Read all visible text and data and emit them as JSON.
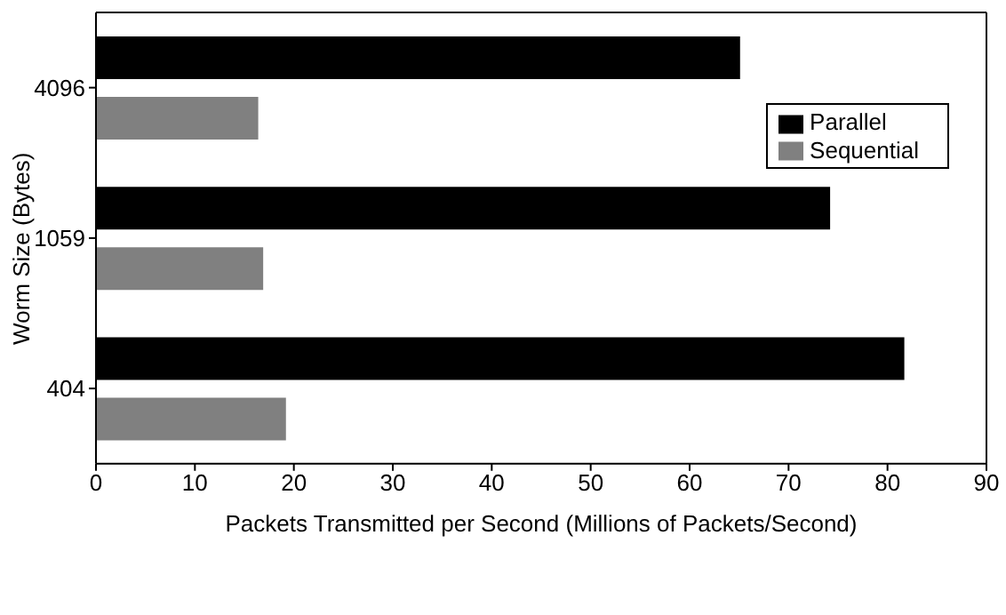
{
  "chart_data": {
    "type": "bar",
    "orientation": "horizontal",
    "xlabel": "Packets Transmitted per Second (Millions of Packets/Second)",
    "ylabel": "Worm Size (Bytes)",
    "categories": [
      "4096",
      "1059",
      "404"
    ],
    "series": [
      {
        "name": "Parallel",
        "color": "#000000",
        "values": [
          65.1,
          74.2,
          81.7
        ]
      },
      {
        "name": "Sequential",
        "color": "#808080",
        "values": [
          16.4,
          16.9,
          19.2
        ]
      }
    ],
    "xlim": [
      0,
      90
    ],
    "xticks": [
      0,
      10,
      20,
      30,
      40,
      50,
      60,
      70,
      80,
      90
    ],
    "grid": false,
    "legend": "top right"
  }
}
